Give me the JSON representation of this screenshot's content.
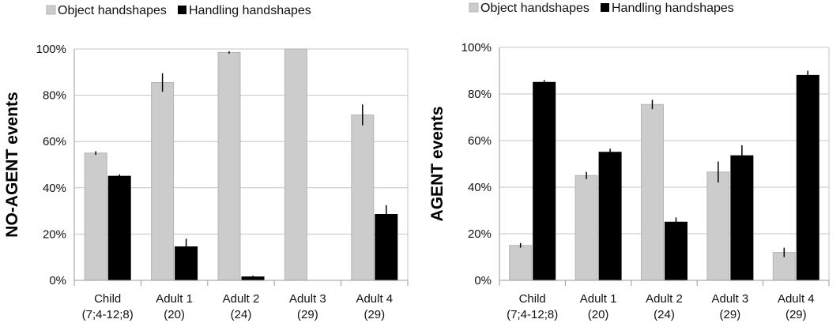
{
  "chart_data": [
    {
      "type": "bar",
      "title": "",
      "xlabel": "",
      "ylabel": "NO-AGENT events",
      "ylim": [
        0,
        100
      ],
      "yticks": [
        "0%",
        "20%",
        "40%",
        "60%",
        "80%",
        "100%"
      ],
      "categories": [
        [
          "Child",
          "(7;4-12;8)"
        ],
        [
          "Adult 1",
          "(20)"
        ],
        [
          "Adult 2",
          "(24)"
        ],
        [
          "Adult 3",
          "(29)"
        ],
        [
          "Adult 4",
          "(29)"
        ]
      ],
      "series": [
        {
          "name": "Object handshapes",
          "color": "#cccccc",
          "values": [
            55,
            85.5,
            98.5,
            100,
            71.5
          ],
          "errors": [
            0.8,
            4,
            0.5,
            0,
            4.5
          ]
        },
        {
          "name": "Handling handshapes",
          "color": "#000000",
          "values": [
            45,
            14.5,
            1.5,
            0,
            28.5
          ],
          "errors": [
            0.8,
            3.5,
            0.5,
            0,
            4
          ]
        }
      ],
      "grid": true,
      "legend": "top-left"
    },
    {
      "type": "bar",
      "title": "",
      "xlabel": "",
      "ylabel": "AGENT events",
      "ylim": [
        0,
        100
      ],
      "yticks": [
        "0%",
        "20%",
        "40%",
        "60%",
        "80%",
        "100%"
      ],
      "categories": [
        [
          "Child",
          "(7;4-12;8)"
        ],
        [
          "Adult 1",
          "(20)"
        ],
        [
          "Adult 2",
          "(24)"
        ],
        [
          "Adult 3",
          "(29)"
        ],
        [
          "Adult 4",
          "(29)"
        ]
      ],
      "series": [
        {
          "name": "Object handshapes",
          "color": "#cccccc",
          "values": [
            15,
            45,
            75.5,
            46.5,
            12
          ],
          "errors": [
            1,
            1.5,
            2,
            4.5,
            2
          ]
        },
        {
          "name": "Handling handshapes",
          "color": "#000000",
          "values": [
            85,
            55,
            25,
            53.5,
            88
          ],
          "errors": [
            1,
            1.5,
            2,
            4.5,
            2
          ]
        }
      ],
      "grid": true,
      "legend": "top-left"
    }
  ]
}
